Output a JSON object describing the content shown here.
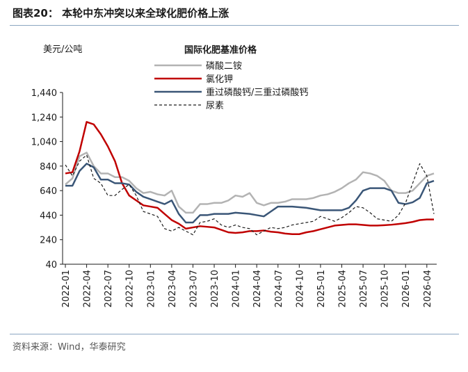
{
  "header": {
    "figure_label": "图表20：",
    "title": "本轮中东冲突以来全球化肥价格上涨"
  },
  "footer": {
    "source": "资料来源：Wind，华泰研究"
  },
  "chart_data": {
    "type": "line",
    "title": "国际化肥基准价格",
    "ylabel": "美元/公吨",
    "xlabel": "",
    "ylim": [
      40,
      1440
    ],
    "yticks": [
      40,
      240,
      440,
      640,
      840,
      1040,
      1240,
      1440
    ],
    "ytick_labels": [
      "40",
      "240",
      "440",
      "640",
      "840",
      "1,040",
      "1,240",
      "1,440"
    ],
    "x_ticks": [
      "2022-01",
      "2022-04",
      "2022-07",
      "2022-10",
      "2023-01",
      "2023-04",
      "2023-07",
      "2023-10",
      "2024-01",
      "2024-04",
      "2024-07",
      "2024-10",
      "2025-01",
      "2025-04",
      "2025-07",
      "2025-10",
      "2026-01",
      "2026-04"
    ],
    "x_start": "2022-01",
    "legend_position": "top-center",
    "series": [
      {
        "name": "磷酸二铵",
        "color": "#b3b3b3",
        "dash": "solid",
        "values": [
          690,
          740,
          920,
          950,
          840,
          780,
          780,
          750,
          750,
          720,
          660,
          620,
          630,
          610,
          600,
          640,
          510,
          460,
          460,
          530,
          530,
          540,
          540,
          560,
          600,
          590,
          620,
          540,
          520,
          540,
          540,
          550,
          570,
          570,
          570,
          580,
          600,
          610,
          630,
          660,
          700,
          730,
          790,
          780,
          760,
          720,
          640,
          620,
          620,
          640,
          700,
          760,
          780
        ]
      },
      {
        "name": "氯化钾",
        "color": "#c00000",
        "dash": "solid",
        "values": [
          780,
          790,
          960,
          1200,
          1180,
          1100,
          1000,
          880,
          700,
          600,
          560,
          520,
          510,
          500,
          450,
          400,
          370,
          330,
          340,
          350,
          345,
          340,
          320,
          300,
          295,
          300,
          310,
          310,
          315,
          305,
          300,
          290,
          285,
          285,
          300,
          310,
          325,
          340,
          355,
          360,
          365,
          365,
          360,
          355,
          355,
          358,
          362,
          368,
          375,
          385,
          400,
          405,
          405
        ]
      },
      {
        "name": "重过磷酸钙/三重过磷酸钙",
        "color": "#3a5677",
        "dash": "solid",
        "values": [
          680,
          680,
          800,
          860,
          830,
          730,
          730,
          700,
          700,
          690,
          630,
          590,
          570,
          550,
          530,
          560,
          450,
          380,
          380,
          440,
          440,
          450,
          450,
          450,
          460,
          455,
          450,
          440,
          430,
          470,
          510,
          510,
          510,
          505,
          500,
          490,
          480,
          480,
          480,
          480,
          500,
          560,
          640,
          660,
          660,
          660,
          640,
          540,
          530,
          545,
          580,
          700,
          720
        ]
      },
      {
        "name": "尿素",
        "color": "#1a1a1a",
        "dash": "dashed",
        "values": [
          850,
          760,
          880,
          930,
          740,
          700,
          600,
          600,
          650,
          690,
          600,
          470,
          450,
          430,
          330,
          310,
          340,
          310,
          280,
          380,
          390,
          410,
          360,
          340,
          360,
          340,
          330,
          280,
          310,
          340,
          330,
          340,
          360,
          370,
          380,
          390,
          430,
          410,
          390,
          420,
          460,
          510,
          500,
          460,
          410,
          400,
          390,
          440,
          540,
          700,
          860,
          760,
          450
        ]
      }
    ]
  }
}
